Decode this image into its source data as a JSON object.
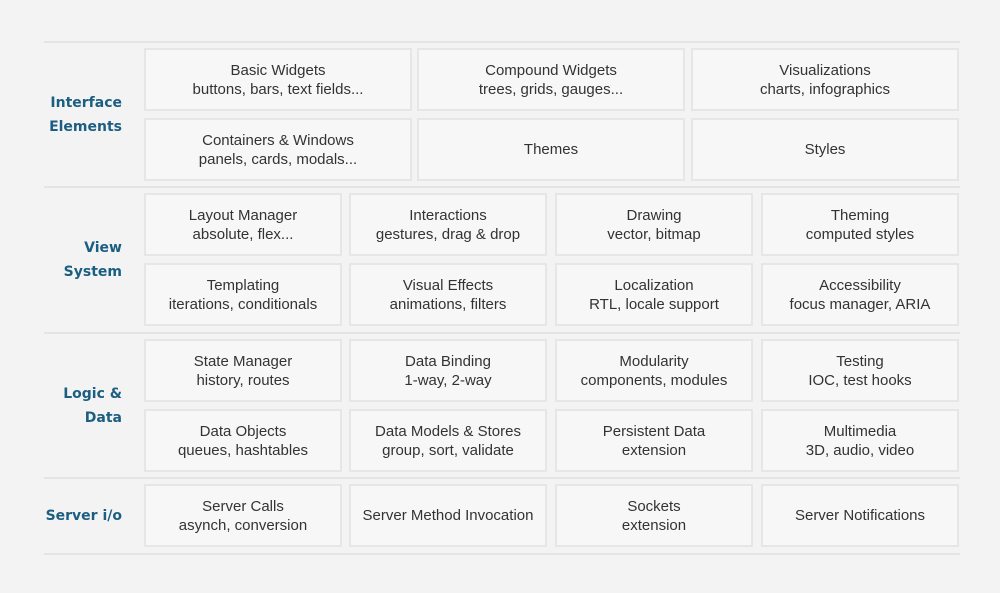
{
  "colors": {
    "background": "#f3f3f3",
    "cell_background": "#f7f7f7",
    "cell_border": "#e6e6e6",
    "label": "#1c5e82",
    "text": "#333333"
  },
  "sections": [
    {
      "label_lines": [
        "Interface",
        "Elements"
      ],
      "rows": [
        [
          {
            "title": "Basic Widgets",
            "subtitle": "buttons, bars, text fields..."
          },
          {
            "title": "Compound Widgets",
            "subtitle": "trees, grids, gauges..."
          },
          {
            "title": "Visualizations",
            "subtitle": "charts, infographics"
          }
        ],
        [
          {
            "title": "Containers & Windows",
            "subtitle": "panels, cards, modals..."
          },
          {
            "title": "Themes",
            "subtitle": ""
          },
          {
            "title": "Styles",
            "subtitle": ""
          }
        ]
      ]
    },
    {
      "label_lines": [
        "View",
        "System"
      ],
      "rows": [
        [
          {
            "title": "Layout Manager",
            "subtitle": "absolute, flex..."
          },
          {
            "title": "Interactions",
            "subtitle": "gestures, drag & drop"
          },
          {
            "title": "Drawing",
            "subtitle": "vector, bitmap"
          },
          {
            "title": "Theming",
            "subtitle": "computed styles"
          }
        ],
        [
          {
            "title": "Templating",
            "subtitle": "iterations, conditionals"
          },
          {
            "title": "Visual Effects",
            "subtitle": "animations, filters"
          },
          {
            "title": "Localization",
            "subtitle": "RTL, locale support"
          },
          {
            "title": "Accessibility",
            "subtitle": "focus manager, ARIA"
          }
        ]
      ]
    },
    {
      "label_lines": [
        "Logic &",
        "Data"
      ],
      "rows": [
        [
          {
            "title": "State Manager",
            "subtitle": "history, routes"
          },
          {
            "title": "Data Binding",
            "subtitle": "1-way, 2-way"
          },
          {
            "title": "Modularity",
            "subtitle": "components, modules"
          },
          {
            "title": "Testing",
            "subtitle": "IOC, test hooks"
          }
        ],
        [
          {
            "title": "Data Objects",
            "subtitle": "queues, hashtables"
          },
          {
            "title": "Data Models & Stores",
            "subtitle": "group, sort, validate"
          },
          {
            "title": "Persistent Data",
            "subtitle": "extension"
          },
          {
            "title": "Multimedia",
            "subtitle": "3D, audio, video"
          }
        ]
      ]
    },
    {
      "label_lines": [
        "Server i/o"
      ],
      "rows": [
        [
          {
            "title": "Server Calls",
            "subtitle": "asynch, conversion"
          },
          {
            "title": "Server Method Invocation",
            "subtitle": ""
          },
          {
            "title": "Sockets",
            "subtitle": "extension"
          },
          {
            "title": "Server Notifications",
            "subtitle": ""
          }
        ]
      ]
    }
  ]
}
